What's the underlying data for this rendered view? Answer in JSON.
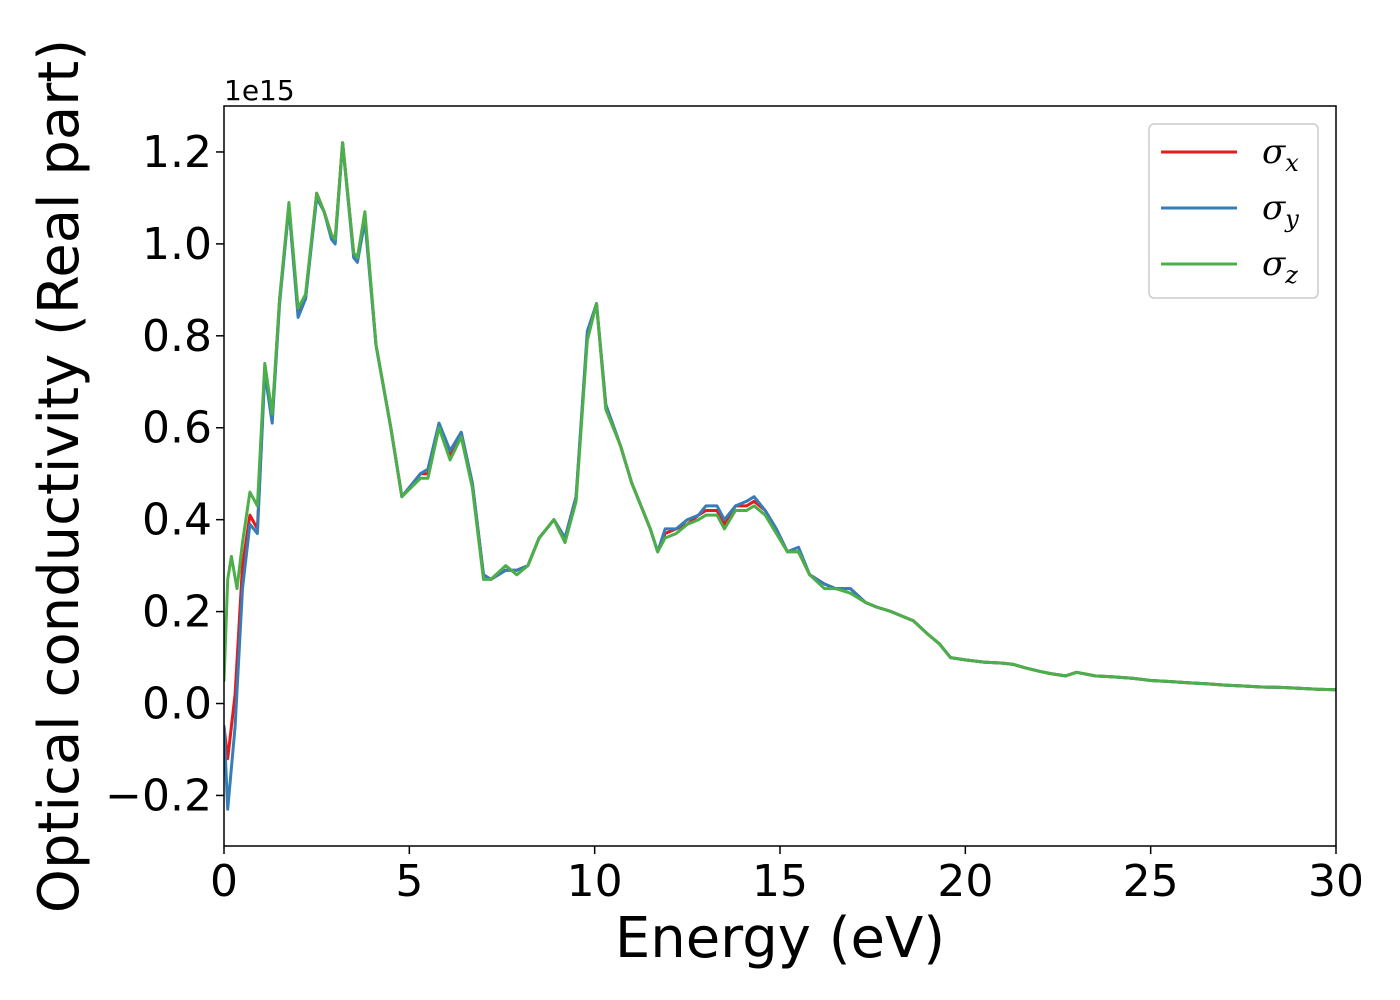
{
  "chart_data": {
    "type": "line",
    "title": "",
    "xlabel": "Energy (eV)",
    "ylabel": "Optical conductivity (Real part)",
    "y_offset_label": "1e15",
    "y_scale_factor": 1000000000000000.0,
    "xlim": [
      0,
      30
    ],
    "ylim": [
      -0.31,
      1.3
    ],
    "x_ticks": [
      0,
      5,
      10,
      15,
      20,
      25,
      30
    ],
    "x_tick_labels": [
      "0",
      "5",
      "10",
      "15",
      "20",
      "25",
      "30"
    ],
    "y_ticks": [
      -0.2,
      0.0,
      0.2,
      0.4,
      0.6,
      0.8,
      1.0,
      1.2
    ],
    "y_tick_labels": [
      "−0.2",
      "0.0",
      "0.2",
      "0.4",
      "0.6",
      "0.8",
      "1.0",
      "1.2"
    ],
    "grid": false,
    "legend_position": "top-right",
    "series": [
      {
        "name": "σx",
        "base": "σ",
        "sub": "x",
        "color": "#e41a1c",
        "x": [
          0,
          0.1,
          0.3,
          0.5,
          0.7,
          0.9,
          1.1,
          1.3,
          1.5,
          1.75,
          2.0,
          2.2,
          2.5,
          2.7,
          2.9,
          3.0,
          3.2,
          3.5,
          3.6,
          3.8,
          4.1,
          4.5,
          4.8,
          5.3,
          5.5,
          5.8,
          6.1,
          6.4,
          6.7,
          7.0,
          7.2,
          7.6,
          7.9,
          8.2,
          8.5,
          8.7,
          8.9,
          9.2,
          9.5,
          9.8,
          10.05,
          10.3,
          10.7,
          11.0,
          11.5,
          11.7,
          11.9,
          12.2,
          12.5,
          12.8,
          13.0,
          13.3,
          13.5,
          13.8,
          14.1,
          14.3,
          14.6,
          14.9,
          15.2,
          15.5,
          15.8,
          16.2,
          16.5,
          16.9,
          17.3,
          17.6,
          18.0,
          18.3,
          18.6,
          19.0,
          19.3,
          19.6,
          20.0,
          20.5,
          21.0,
          21.3,
          21.6,
          22.0,
          22.3,
          22.7,
          23.0,
          23.5,
          24.0,
          24.5,
          25.0,
          25.5,
          26.0,
          26.5,
          27.0,
          27.5,
          28.0,
          28.5,
          29.0,
          29.5,
          30.0
        ],
        "y": [
          -0.05,
          -0.12,
          0.02,
          0.3,
          0.41,
          0.38,
          0.73,
          0.62,
          0.88,
          1.08,
          0.85,
          0.88,
          1.11,
          1.07,
          1.02,
          1.01,
          1.22,
          0.98,
          0.97,
          1.06,
          0.78,
          0.6,
          0.45,
          0.5,
          0.5,
          0.6,
          0.54,
          0.59,
          0.48,
          0.28,
          0.27,
          0.29,
          0.29,
          0.3,
          0.36,
          0.38,
          0.4,
          0.36,
          0.45,
          0.8,
          0.87,
          0.65,
          0.56,
          0.48,
          0.38,
          0.33,
          0.37,
          0.38,
          0.39,
          0.41,
          0.42,
          0.42,
          0.39,
          0.43,
          0.43,
          0.44,
          0.42,
          0.38,
          0.33,
          0.33,
          0.28,
          0.26,
          0.25,
          0.25,
          0.22,
          0.21,
          0.2,
          0.19,
          0.18,
          0.15,
          0.13,
          0.1,
          0.095,
          0.09,
          0.088,
          0.085,
          0.078,
          0.07,
          0.065,
          0.06,
          0.068,
          0.06,
          0.058,
          0.055,
          0.05,
          0.048,
          0.045,
          0.043,
          0.04,
          0.038,
          0.036,
          0.035,
          0.033,
          0.031,
          0.03
        ]
      },
      {
        "name": "σy",
        "base": "σ",
        "sub": "y",
        "color": "#377eb8",
        "x": [
          0,
          0.1,
          0.3,
          0.5,
          0.7,
          0.9,
          1.1,
          1.3,
          1.5,
          1.75,
          2.0,
          2.2,
          2.5,
          2.7,
          2.9,
          3.0,
          3.2,
          3.5,
          3.6,
          3.8,
          4.1,
          4.5,
          4.8,
          5.3,
          5.5,
          5.8,
          6.1,
          6.4,
          6.7,
          7.0,
          7.2,
          7.6,
          7.9,
          8.2,
          8.5,
          8.7,
          8.9,
          9.2,
          9.5,
          9.8,
          10.05,
          10.3,
          10.7,
          11.0,
          11.5,
          11.7,
          11.9,
          12.2,
          12.5,
          12.8,
          13.0,
          13.3,
          13.5,
          13.8,
          14.1,
          14.3,
          14.6,
          14.9,
          15.2,
          15.5,
          15.8,
          16.2,
          16.5,
          16.9,
          17.3,
          17.6,
          18.0,
          18.3,
          18.6,
          19.0,
          19.3,
          19.6,
          20.0,
          20.5,
          21.0,
          21.3,
          21.6,
          22.0,
          22.3,
          22.7,
          23.0,
          23.5,
          24.0,
          24.5,
          25.0,
          25.5,
          26.0,
          26.5,
          27.0,
          27.5,
          28.0,
          28.5,
          29.0,
          29.5,
          30.0
        ],
        "y": [
          -0.05,
          -0.23,
          -0.05,
          0.25,
          0.39,
          0.37,
          0.72,
          0.61,
          0.87,
          1.08,
          0.84,
          0.88,
          1.1,
          1.07,
          1.01,
          1.0,
          1.22,
          0.97,
          0.96,
          1.05,
          0.78,
          0.6,
          0.45,
          0.5,
          0.51,
          0.61,
          0.55,
          0.59,
          0.48,
          0.28,
          0.27,
          0.29,
          0.29,
          0.3,
          0.36,
          0.38,
          0.4,
          0.36,
          0.45,
          0.81,
          0.87,
          0.65,
          0.56,
          0.48,
          0.38,
          0.33,
          0.38,
          0.38,
          0.4,
          0.41,
          0.43,
          0.43,
          0.4,
          0.43,
          0.44,
          0.45,
          0.42,
          0.38,
          0.33,
          0.34,
          0.28,
          0.26,
          0.25,
          0.25,
          0.22,
          0.21,
          0.2,
          0.19,
          0.18,
          0.15,
          0.13,
          0.1,
          0.095,
          0.09,
          0.088,
          0.085,
          0.078,
          0.07,
          0.065,
          0.06,
          0.068,
          0.06,
          0.058,
          0.055,
          0.05,
          0.048,
          0.045,
          0.043,
          0.04,
          0.038,
          0.036,
          0.035,
          0.033,
          0.031,
          0.03
        ]
      },
      {
        "name": "σz",
        "base": "σ",
        "sub": "z",
        "color": "#4daf4a",
        "x": [
          0,
          0.1,
          0.2,
          0.35,
          0.5,
          0.7,
          0.9,
          1.1,
          1.3,
          1.5,
          1.75,
          2.0,
          2.2,
          2.5,
          2.7,
          2.9,
          3.0,
          3.2,
          3.5,
          3.6,
          3.8,
          4.1,
          4.5,
          4.8,
          5.3,
          5.5,
          5.8,
          6.1,
          6.4,
          6.7,
          7.0,
          7.2,
          7.6,
          7.9,
          8.2,
          8.5,
          8.7,
          8.9,
          9.2,
          9.5,
          9.8,
          10.05,
          10.3,
          10.7,
          11.0,
          11.5,
          11.7,
          11.9,
          12.2,
          12.5,
          12.8,
          13.0,
          13.3,
          13.5,
          13.8,
          14.1,
          14.3,
          14.6,
          14.9,
          15.2,
          15.5,
          15.8,
          16.2,
          16.5,
          16.9,
          17.3,
          17.6,
          18.0,
          18.3,
          18.6,
          19.0,
          19.3,
          19.6,
          20.0,
          20.5,
          21.0,
          21.3,
          21.6,
          22.0,
          22.3,
          22.7,
          23.0,
          23.5,
          24.0,
          24.5,
          25.0,
          25.5,
          26.0,
          26.5,
          27.0,
          27.5,
          28.0,
          28.5,
          29.0,
          29.5,
          30.0
        ],
        "y": [
          0.05,
          0.27,
          0.32,
          0.25,
          0.35,
          0.46,
          0.43,
          0.74,
          0.63,
          0.88,
          1.09,
          0.86,
          0.89,
          1.11,
          1.07,
          1.02,
          1.01,
          1.22,
          0.98,
          0.97,
          1.07,
          0.78,
          0.6,
          0.45,
          0.49,
          0.49,
          0.6,
          0.53,
          0.58,
          0.47,
          0.27,
          0.27,
          0.3,
          0.28,
          0.3,
          0.36,
          0.38,
          0.4,
          0.35,
          0.44,
          0.79,
          0.87,
          0.64,
          0.56,
          0.48,
          0.38,
          0.33,
          0.36,
          0.37,
          0.39,
          0.4,
          0.41,
          0.41,
          0.38,
          0.42,
          0.42,
          0.43,
          0.41,
          0.37,
          0.33,
          0.33,
          0.28,
          0.25,
          0.25,
          0.24,
          0.22,
          0.21,
          0.2,
          0.19,
          0.18,
          0.15,
          0.13,
          0.1,
          0.095,
          0.09,
          0.088,
          0.085,
          0.078,
          0.07,
          0.065,
          0.06,
          0.068,
          0.06,
          0.058,
          0.055,
          0.05,
          0.048,
          0.045,
          0.043,
          0.04,
          0.038,
          0.036,
          0.035,
          0.033,
          0.031,
          0.03
        ]
      }
    ]
  }
}
